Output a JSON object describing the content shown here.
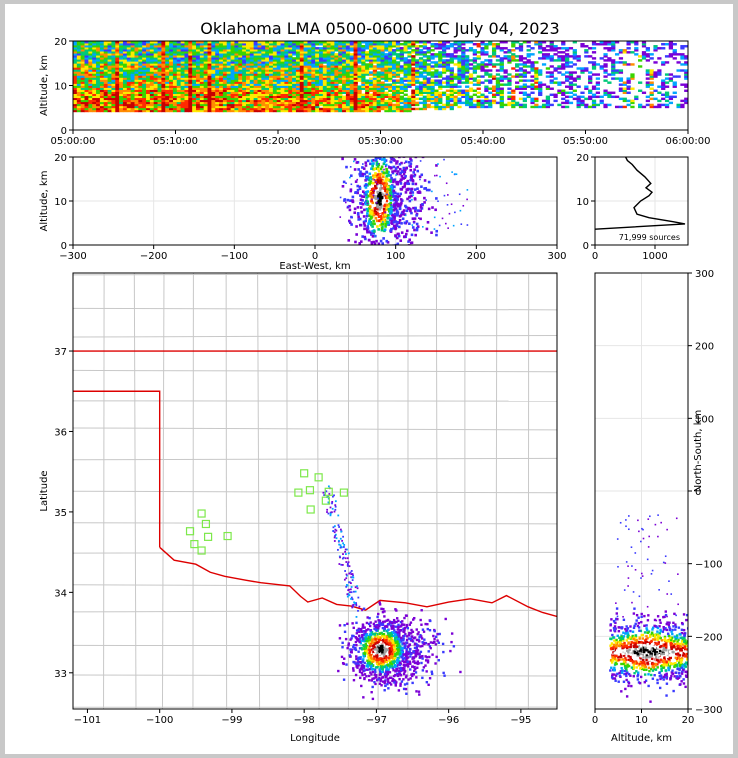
{
  "title": "Oklahoma LMA 0500-0600 UTC July 04, 2023",
  "colors": {
    "frame": "#c8c8c8",
    "state_border": "#dd0000",
    "county_line": "#c8c8c8",
    "station": "#7de84a",
    "grid": "#e6e6e6",
    "density_scale": [
      "#7b00d6",
      "#3a3aff",
      "#00a5ff",
      "#00c87a",
      "#39d400",
      "#ffea00",
      "#ff8c00",
      "#ff2a00",
      "#c80000",
      "#ffffff",
      "#a0a0a0",
      "#000000"
    ]
  },
  "chart_data": [
    {
      "panel": "time-height",
      "type": "heatmap",
      "xlabel": "",
      "ylabel": "Altitude, km",
      "x_ticks": [
        "05:00:00",
        "05:10:00",
        "05:20:00",
        "05:30:00",
        "05:40:00",
        "05:50:00",
        "06:00:00"
      ],
      "xlim": [
        "05:00:00",
        "06:00:00"
      ],
      "y_ticks": [
        "0",
        "10",
        "20"
      ],
      "ylim": [
        0,
        20
      ],
      "activity": [
        {
          "time": "05:00",
          "level": 0.9,
          "base_km": 4,
          "top_km": 20
        },
        {
          "time": "05:10",
          "level": 0.85,
          "base_km": 4,
          "top_km": 20
        },
        {
          "time": "05:20",
          "level": 0.85,
          "base_km": 4,
          "top_km": 20
        },
        {
          "time": "05:30",
          "level": 0.8,
          "base_km": 4,
          "top_km": 20
        },
        {
          "time": "05:40",
          "level": 0.45,
          "base_km": 5,
          "top_km": 20
        },
        {
          "time": "05:50",
          "level": 0.25,
          "base_km": 5,
          "top_km": 20
        },
        {
          "time": "06:00",
          "level": 0.2,
          "base_km": 5,
          "top_km": 20
        }
      ]
    },
    {
      "panel": "east-west-altitude",
      "type": "heatmap",
      "xlabel": "East-West, km",
      "ylabel": "Altitude, km",
      "x_ticks": [
        "−300",
        "−200",
        "−100",
        "0",
        "100",
        "200",
        "300"
      ],
      "xlim": [
        -300,
        300
      ],
      "y_ticks": [
        "0",
        "10",
        "20"
      ],
      "ylim": [
        0,
        20
      ],
      "core": {
        "x_center_km": 78,
        "width_km": 30,
        "alt_center_km": 11,
        "alt_height_km": 16
      },
      "spread_x_km": [
        30,
        190
      ]
    },
    {
      "panel": "altitude-histogram",
      "type": "line",
      "x_ticks": [
        "0",
        "1000"
      ],
      "xlim": [
        0,
        1550
      ],
      "y_ticks": [
        "0",
        "10",
        "20"
      ],
      "ylim": [
        0,
        20
      ],
      "annotation": "71,999 sources",
      "points": [
        {
          "x": 0,
          "y": 3.6
        },
        {
          "x": 1500,
          "y": 4.8
        },
        {
          "x": 1300,
          "y": 5.3
        },
        {
          "x": 900,
          "y": 6.2
        },
        {
          "x": 700,
          "y": 7.0
        },
        {
          "x": 650,
          "y": 8.5
        },
        {
          "x": 760,
          "y": 10.0
        },
        {
          "x": 900,
          "y": 11.2
        },
        {
          "x": 950,
          "y": 12.0
        },
        {
          "x": 850,
          "y": 13.0
        },
        {
          "x": 930,
          "y": 14.0
        },
        {
          "x": 830,
          "y": 15.5
        },
        {
          "x": 700,
          "y": 17.0
        },
        {
          "x": 620,
          "y": 18.3
        },
        {
          "x": 540,
          "y": 19.2
        },
        {
          "x": 510,
          "y": 20.0
        }
      ]
    },
    {
      "panel": "plan-view-map",
      "type": "scatter",
      "xlabel": "Longitude",
      "ylabel": "Latitude",
      "x_ticks": [
        "−101",
        "−100",
        "−99",
        "−98",
        "−97",
        "−96",
        "−95"
      ],
      "xlim": [
        -101.2,
        -94.5
      ],
      "y_ticks": [
        "33",
        "34",
        "35",
        "36",
        "37"
      ],
      "ylim": [
        32.55,
        37.97
      ],
      "stations": [
        {
          "lon": -99.42,
          "lat": 34.98
        },
        {
          "lon": -99.36,
          "lat": 34.85
        },
        {
          "lon": -99.58,
          "lat": 34.76
        },
        {
          "lon": -99.33,
          "lat": 34.69
        },
        {
          "lon": -99.52,
          "lat": 34.6
        },
        {
          "lon": -99.42,
          "lat": 34.52
        },
        {
          "lon": -99.06,
          "lat": 34.7
        },
        {
          "lon": -98.0,
          "lat": 35.48
        },
        {
          "lon": -97.8,
          "lat": 35.43
        },
        {
          "lon": -97.92,
          "lat": 35.27
        },
        {
          "lon": -98.08,
          "lat": 35.24
        },
        {
          "lon": -97.66,
          "lat": 35.25
        },
        {
          "lon": -97.45,
          "lat": 35.24
        },
        {
          "lon": -97.7,
          "lat": 35.14
        },
        {
          "lon": -97.91,
          "lat": 35.03
        }
      ],
      "storm_core": {
        "lon": -96.95,
        "lat": 33.3
      }
    },
    {
      "panel": "altitude-north-south",
      "type": "heatmap",
      "xlabel": "Altitude, km",
      "ylabel": "North-South, km",
      "x_ticks": [
        "0",
        "10",
        "20"
      ],
      "xlim": [
        0,
        20
      ],
      "y_ticks": [
        "300",
        "200",
        "100",
        "0",
        "−100",
        "−200",
        "−300"
      ],
      "ylim": [
        -300,
        300
      ],
      "core": {
        "alt_center_km": 11,
        "y_center_km": -220,
        "y_spread_km": 45
      }
    }
  ]
}
